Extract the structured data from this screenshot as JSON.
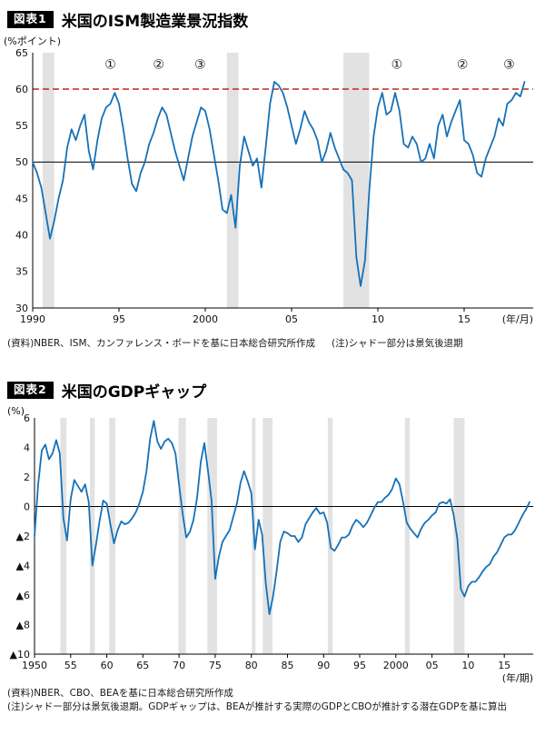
{
  "page": {
    "background": "#ffffff"
  },
  "chart_data": [
    {
      "id": "figure1",
      "tag": "図表1",
      "title": "米国のISM製造業景況指数",
      "type": "line",
      "ylabel": "(%ポイント)",
      "xlabel": "(年/月)",
      "ylim": [
        30,
        65
      ],
      "xlim": [
        1990,
        2019
      ],
      "yticks": [
        {
          "v": 65,
          "label": "65"
        },
        {
          "v": 60,
          "label": "60"
        },
        {
          "v": 55,
          "label": "55"
        },
        {
          "v": 50,
          "label": "50"
        },
        {
          "v": 45,
          "label": "45"
        },
        {
          "v": 40,
          "label": "40"
        },
        {
          "v": 35,
          "label": "35"
        },
        {
          "v": 30,
          "label": "30"
        }
      ],
      "xticks": [
        {
          "v": 1990,
          "label": "1990"
        },
        {
          "v": 1995,
          "label": "95"
        },
        {
          "v": 2000,
          "label": "2000"
        },
        {
          "v": 2005,
          "label": "05"
        },
        {
          "v": 2010,
          "label": "10"
        },
        {
          "v": 2015,
          "label": "15"
        }
      ],
      "x_start": 1990,
      "x_step": 0.25,
      "values": [
        50.0,
        48.5,
        46.5,
        43.0,
        39.5,
        42.0,
        45.0,
        47.5,
        52.0,
        54.5,
        53.0,
        55.0,
        56.5,
        51.5,
        49.0,
        53.0,
        56.0,
        57.5,
        58.0,
        59.5,
        58.0,
        54.5,
        50.5,
        47.0,
        46.0,
        48.5,
        50.0,
        52.5,
        54.0,
        56.0,
        57.5,
        56.5,
        54.0,
        51.5,
        49.5,
        47.5,
        50.5,
        53.5,
        55.5,
        57.5,
        57.0,
        54.5,
        51.0,
        47.5,
        43.5,
        43.0,
        45.5,
        41.0,
        49.5,
        53.5,
        51.5,
        49.5,
        50.5,
        46.5,
        52.0,
        58.0,
        61.0,
        60.5,
        59.5,
        57.5,
        55.0,
        52.5,
        54.5,
        57.0,
        55.5,
        54.5,
        53.0,
        50.0,
        51.5,
        54.0,
        52.0,
        50.5,
        49.0,
        48.5,
        47.5,
        37.0,
        33.0,
        36.5,
        46.0,
        53.5,
        57.5,
        59.5,
        56.5,
        57.0,
        59.5,
        57.0,
        52.5,
        52.0,
        53.5,
        52.5,
        50.0,
        50.5,
        52.5,
        50.5,
        55.0,
        56.5,
        53.5,
        55.5,
        57.0,
        58.5,
        53.0,
        52.5,
        51.0,
        48.5,
        48.0,
        50.5,
        52.0,
        53.5,
        56.0,
        55.0,
        58.0,
        58.5,
        59.5,
        59.0,
        61.0
      ],
      "line_color": "#1571b8",
      "band_color": "#e2e2e2",
      "ref_lines": [
        {
          "y": 50,
          "style": "solid",
          "color": "#000000",
          "width": 1
        },
        {
          "y": 60,
          "style": "dashed",
          "color": "#c0392b",
          "width": 1.6
        }
      ],
      "recession_bands": [
        [
          1990.58,
          1991.25
        ],
        [
          2001.25,
          2001.92
        ],
        [
          2008.0,
          2009.5
        ]
      ],
      "annotations": [
        {
          "x": 1994.5,
          "y": 62.8,
          "label": "①"
        },
        {
          "x": 1997.3,
          "y": 62.8,
          "label": "②"
        },
        {
          "x": 1999.7,
          "y": 62.8,
          "label": "③"
        },
        {
          "x": 2011.1,
          "y": 62.8,
          "label": "①"
        },
        {
          "x": 2014.9,
          "y": 62.8,
          "label": "②"
        },
        {
          "x": 2017.6,
          "y": 62.8,
          "label": "③"
        }
      ],
      "source": "(資料)NBER、ISM、カンファレンス・ボードを基に日本総合研究所作成",
      "note": "(注)シャドー部分は景気後退期"
    },
    {
      "id": "figure2",
      "tag": "図表2",
      "title": "米国のGDPギャップ",
      "type": "line",
      "ylabel": "(%)",
      "xlabel": "(年/期)",
      "ylim": [
        -10,
        6
      ],
      "xlim": [
        1950,
        2019
      ],
      "yticks": [
        {
          "v": 6,
          "label": "6"
        },
        {
          "v": 4,
          "label": "4"
        },
        {
          "v": 2,
          "label": "2"
        },
        {
          "v": 0,
          "label": "0"
        },
        {
          "v": -2,
          "label": "▲2"
        },
        {
          "v": -4,
          "label": "▲4"
        },
        {
          "v": -6,
          "label": "▲6"
        },
        {
          "v": -8,
          "label": "▲8"
        },
        {
          "v": -10,
          "label": "▲10"
        }
      ],
      "xticks": [
        {
          "v": 1950,
          "label": "1950"
        },
        {
          "v": 1955,
          "label": "55"
        },
        {
          "v": 1960,
          "label": "60"
        },
        {
          "v": 1965,
          "label": "65"
        },
        {
          "v": 1970,
          "label": "70"
        },
        {
          "v": 1975,
          "label": "75"
        },
        {
          "v": 1980,
          "label": "80"
        },
        {
          "v": 1985,
          "label": "85"
        },
        {
          "v": 1990,
          "label": "90"
        },
        {
          "v": 1995,
          "label": "95"
        },
        {
          "v": 2000,
          "label": "2000"
        },
        {
          "v": 2005,
          "label": "05"
        },
        {
          "v": 2010,
          "label": "10"
        },
        {
          "v": 2015,
          "label": "15"
        }
      ],
      "x_start": 1950,
      "x_step": 0.5,
      "values": [
        -2.0,
        1.5,
        3.8,
        4.2,
        3.2,
        3.6,
        4.5,
        3.6,
        -0.8,
        -2.3,
        0.5,
        1.8,
        1.4,
        1.0,
        1.5,
        0.3,
        -4.0,
        -2.6,
        -1.0,
        0.4,
        0.2,
        -1.2,
        -2.5,
        -1.6,
        -1.0,
        -1.2,
        -1.1,
        -0.8,
        -0.4,
        0.2,
        1.0,
        2.4,
        4.6,
        5.8,
        4.4,
        3.9,
        4.4,
        4.6,
        4.3,
        3.6,
        1.5,
        -0.5,
        -2.1,
        -1.7,
        -0.9,
        0.6,
        3.0,
        4.3,
        2.4,
        0.4,
        -4.9,
        -3.4,
        -2.4,
        -2.0,
        -1.6,
        -0.7,
        0.2,
        1.6,
        2.4,
        1.7,
        0.9,
        -2.9,
        -0.9,
        -1.9,
        -5.2,
        -7.3,
        -6.1,
        -4.4,
        -2.4,
        -1.7,
        -1.8,
        -2.0,
        -2.0,
        -2.4,
        -2.1,
        -1.2,
        -0.8,
        -0.4,
        -0.1,
        -0.5,
        -0.4,
        -1.1,
        -2.8,
        -3.0,
        -2.6,
        -2.1,
        -2.1,
        -1.9,
        -1.3,
        -0.9,
        -1.1,
        -1.4,
        -1.1,
        -0.6,
        -0.1,
        0.3,
        0.3,
        0.6,
        0.8,
        1.2,
        1.9,
        1.5,
        0.3,
        -1.1,
        -1.5,
        -1.8,
        -2.1,
        -1.5,
        -1.1,
        -0.9,
        -0.6,
        -0.4,
        0.2,
        0.3,
        0.2,
        0.5,
        -0.6,
        -2.2,
        -5.6,
        -6.1,
        -5.4,
        -5.1,
        -5.1,
        -4.8,
        -4.4,
        -4.1,
        -3.9,
        -3.4,
        -3.1,
        -2.6,
        -2.1,
        -1.9,
        -1.9,
        -1.6,
        -1.1,
        -0.6,
        -0.2,
        0.3
      ],
      "line_color": "#1571b8",
      "band_color": "#e2e2e2",
      "ref_lines": [
        {
          "y": 0,
          "style": "solid",
          "color": "#000000",
          "width": 1
        }
      ],
      "recession_bands": [
        [
          1953.58,
          1954.42
        ],
        [
          1957.67,
          1958.33
        ],
        [
          1960.33,
          1961.17
        ],
        [
          1969.92,
          1970.92
        ],
        [
          1973.92,
          1975.25
        ],
        [
          1980.08,
          1980.58
        ],
        [
          1981.58,
          1982.92
        ],
        [
          1990.58,
          1991.25
        ],
        [
          2001.25,
          2001.92
        ],
        [
          2008.0,
          2009.5
        ]
      ],
      "annotations": [],
      "source": "(資料)NBER、CBO、BEAを基に日本総合研究所作成",
      "note": "(注)シャドー部分は景気後退期。GDPギャップは、BEAが推計する実際のGDPとCBOが推計する潜在GDPを基に算出"
    }
  ]
}
